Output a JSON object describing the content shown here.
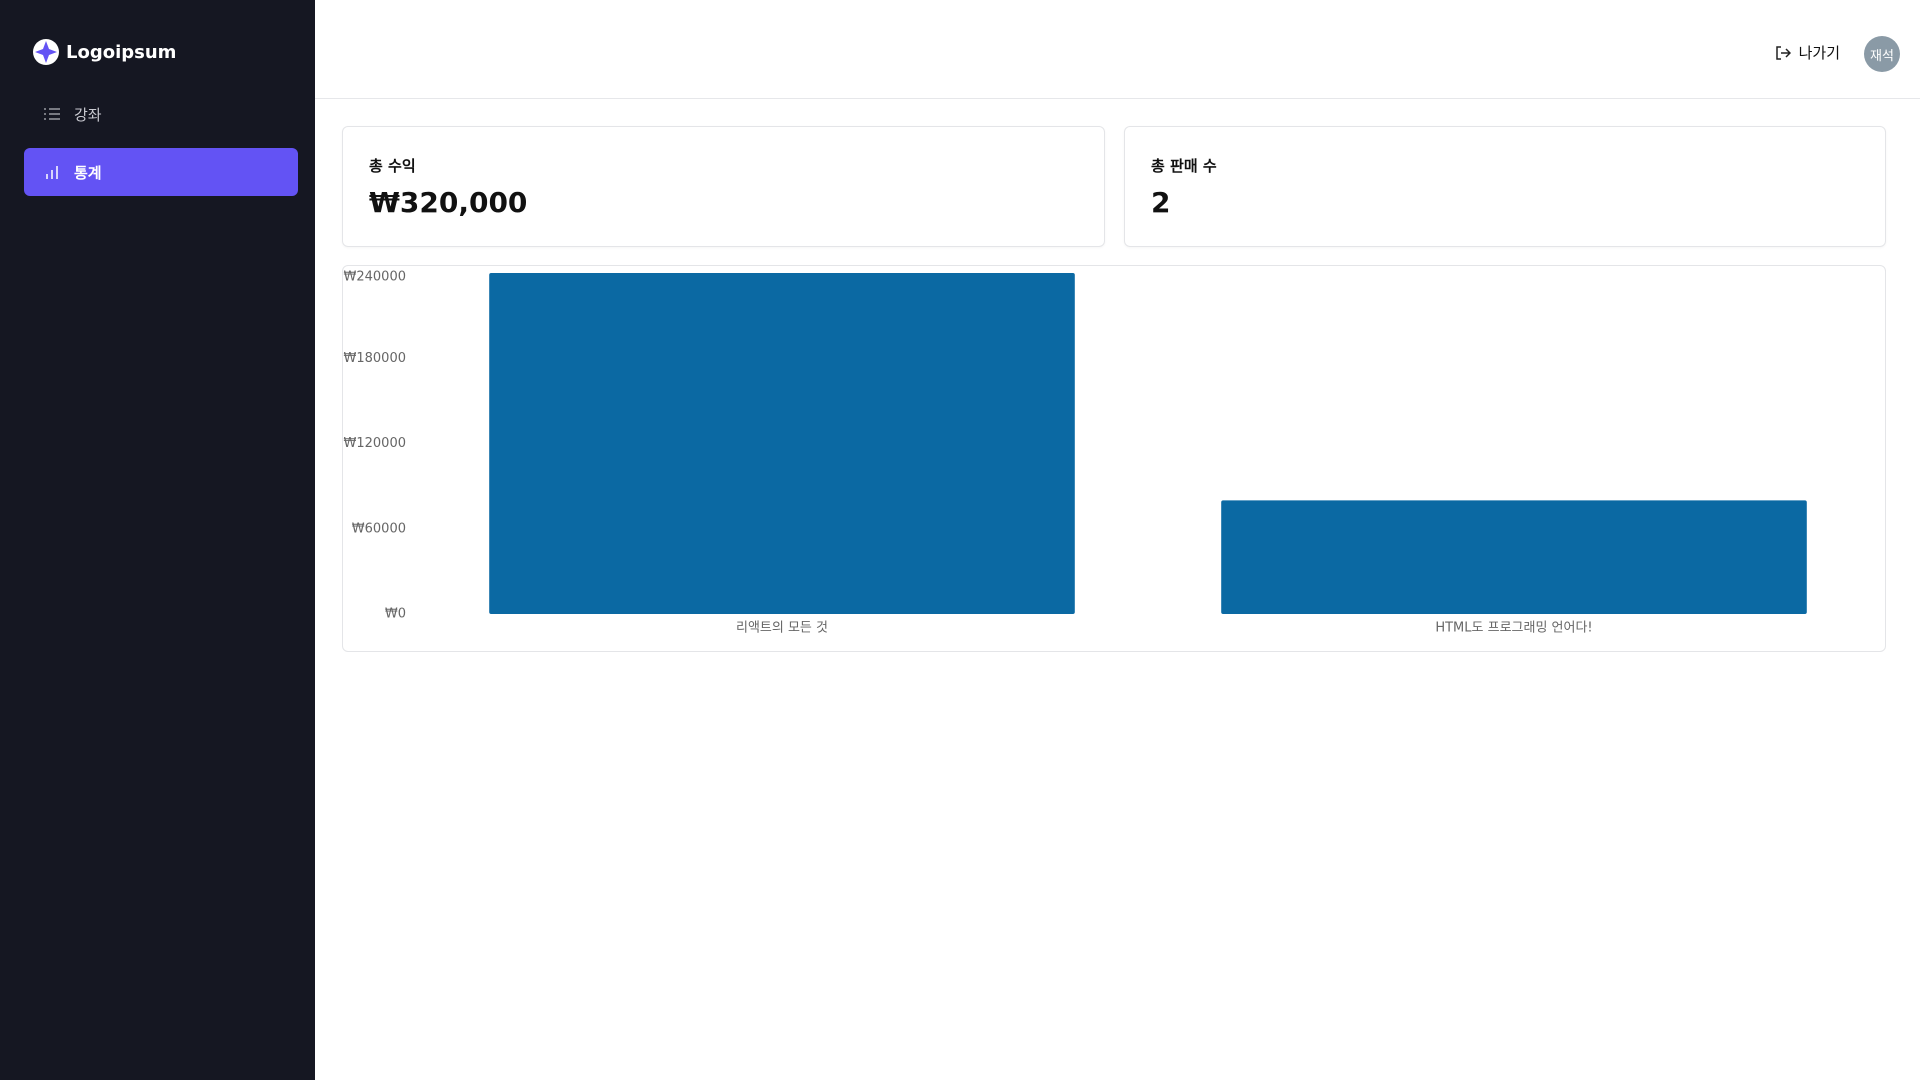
{
  "sidebar": {
    "logo": "Logoipsum",
    "nav": [
      "강좌",
      "통계"
    ]
  },
  "header": {
    "logout": "나가기",
    "avatar": "재석"
  },
  "cards": [
    {
      "label": "총 수익",
      "value": "₩320,000"
    },
    {
      "label": "총 판매 수",
      "value": 2
    }
  ],
  "chart_data": {
    "type": "bar",
    "categories": [
      "리액트의 모든 것",
      "HTML도 프로그래밍 언어다!"
    ],
    "values": [
      240000,
      80000
    ],
    "color": "#0b69a3",
    "ylim": [
      0,
      240000
    ],
    "yticks": [
      {
        "value": 0,
        "label": "₩0"
      },
      {
        "value": 60000,
        "label": "₩60000"
      },
      {
        "value": 120000,
        "label": "₩120000"
      },
      {
        "value": 180000,
        "label": "₩180000"
      },
      {
        "value": 240000,
        "label": "₩240000"
      }
    ],
    "grid": false
  }
}
